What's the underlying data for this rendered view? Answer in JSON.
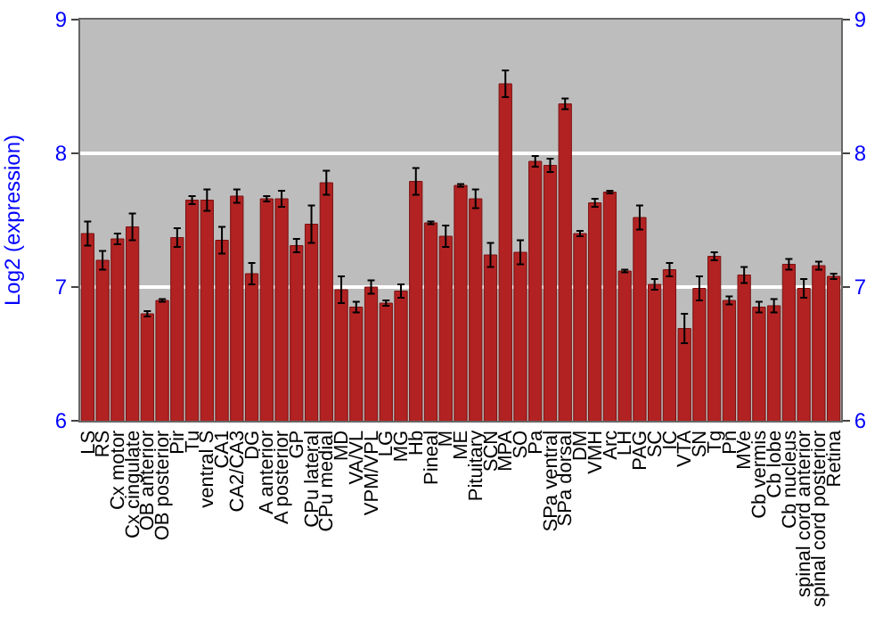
{
  "chart_data": {
    "type": "bar",
    "ylabel": "Log2 (expression)",
    "categories": [
      "LS",
      "RS",
      "Cx motor",
      "Cx cingulate",
      "OB anterior",
      "OB posterior",
      "Pir",
      "Tu",
      "ventral S",
      "CA1",
      "CA2/CA3",
      "DG",
      "A anterior",
      "A posterior",
      "GP",
      "CPu lateral",
      "CPu medial",
      "MD",
      "VA/VL",
      "VPM/VPL",
      "LG",
      "MG",
      "Hb",
      "Pineal",
      "M",
      "ME",
      "Pituitary",
      "SCN",
      "MPA",
      "SO",
      "Pa",
      "SPa ventral",
      "SPa dorsal",
      "DM",
      "VMH",
      "Arc",
      "LH",
      "PAG",
      "SC",
      "IC",
      "VTA",
      "SN",
      "Tg",
      "Pn",
      "MVe",
      "Cb vermis",
      "Cb lobe",
      "Cb nucleus",
      "spinal cord anterior",
      "spinal cord posterior",
      "Retina"
    ],
    "values": [
      7.4,
      7.2,
      7.36,
      7.45,
      6.8,
      6.9,
      7.37,
      7.65,
      7.65,
      7.35,
      7.68,
      7.1,
      7.66,
      7.66,
      7.31,
      7.47,
      7.78,
      6.98,
      6.85,
      7.0,
      6.88,
      6.97,
      7.79,
      7.48,
      7.38,
      7.76,
      7.66,
      7.24,
      8.52,
      7.26,
      7.94,
      7.91,
      8.37,
      7.4,
      7.63,
      7.71,
      7.12,
      7.52,
      7.02,
      7.13,
      6.69,
      6.99,
      7.23,
      6.9,
      7.09,
      6.85,
      6.86,
      7.17,
      6.99,
      7.16,
      7.08
    ],
    "errors": [
      0.09,
      0.07,
      0.04,
      0.1,
      0.02,
      0.01,
      0.07,
      0.03,
      0.08,
      0.1,
      0.05,
      0.08,
      0.02,
      0.06,
      0.05,
      0.14,
      0.09,
      0.1,
      0.04,
      0.05,
      0.02,
      0.05,
      0.1,
      0.01,
      0.08,
      0.01,
      0.07,
      0.09,
      0.1,
      0.09,
      0.04,
      0.05,
      0.04,
      0.02,
      0.03,
      0.01,
      0.01,
      0.09,
      0.04,
      0.05,
      0.11,
      0.09,
      0.03,
      0.03,
      0.06,
      0.04,
      0.05,
      0.04,
      0.07,
      0.03,
      0.02
    ],
    "color": "#b22222",
    "ylim": [
      6,
      9
    ],
    "yticks": [
      6,
      7,
      8,
      9
    ],
    "y2lim": [
      6,
      9
    ],
    "y2ticks": [
      6,
      7,
      8,
      9
    ],
    "grid": "y"
  }
}
